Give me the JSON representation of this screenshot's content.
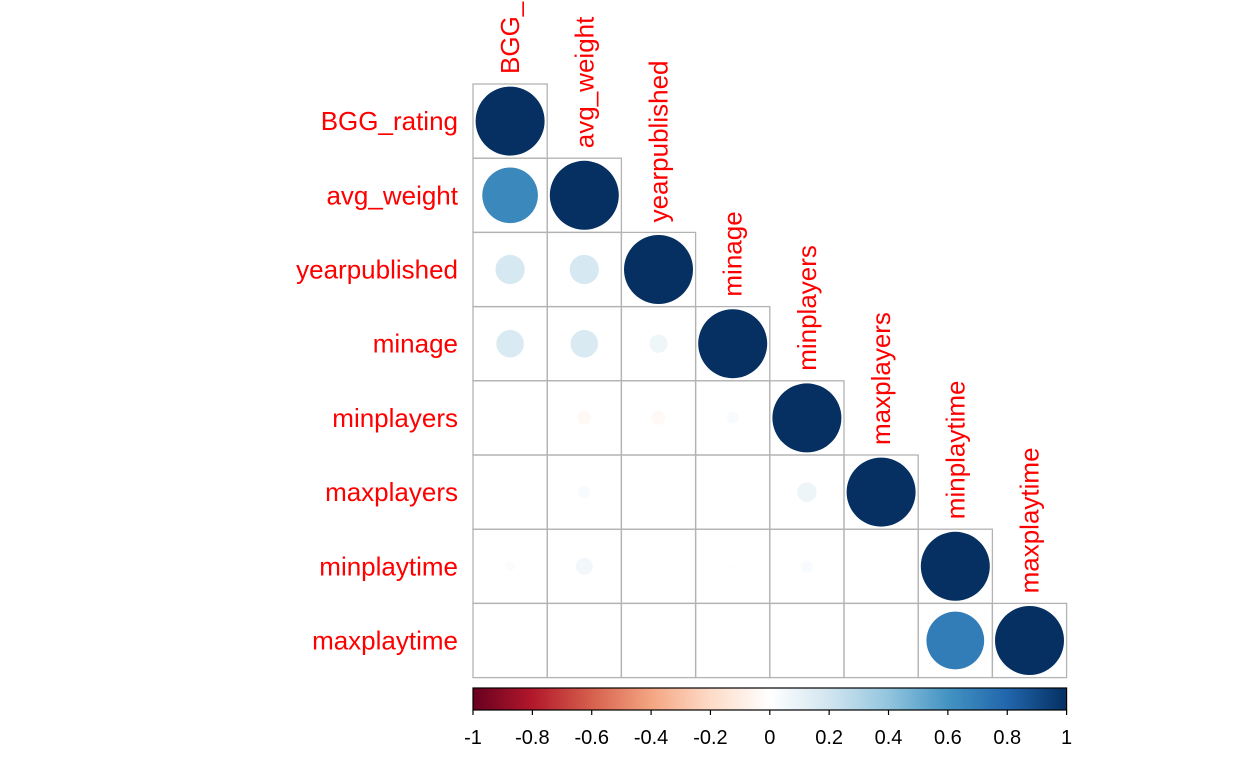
{
  "chart_data": {
    "type": "heatmap",
    "variables": [
      "BGG_rating",
      "avg_weight",
      "yearpublished",
      "minage",
      "minplayers",
      "maxplayers",
      "minplaytime",
      "maxplaytime"
    ],
    "matrix": [
      [
        1.0,
        0.65,
        0.18,
        0.16,
        0.0,
        0.0,
        0.02,
        0.0
      ],
      [
        0.65,
        1.0,
        0.18,
        0.16,
        -0.04,
        0.03,
        0.06,
        0.0
      ],
      [
        0.18,
        0.18,
        1.0,
        0.07,
        -0.04,
        0.0,
        0.0,
        0.0
      ],
      [
        0.16,
        0.16,
        0.07,
        1.0,
        0.03,
        0.0,
        0.01,
        0.0
      ],
      [
        0.0,
        -0.04,
        -0.04,
        0.03,
        1.0,
        0.08,
        0.03,
        0.0
      ],
      [
        0.0,
        0.03,
        0.0,
        0.0,
        0.08,
        1.0,
        0.0,
        0.0
      ],
      [
        0.02,
        0.06,
        0.0,
        0.01,
        0.03,
        0.0,
        1.0,
        0.7
      ],
      [
        0.0,
        0.0,
        0.0,
        0.0,
        0.0,
        0.0,
        0.7,
        1.0
      ]
    ],
    "display": "lower-triangle-circles",
    "color_scale": {
      "range": [
        -1,
        1
      ],
      "ticks": [
        "-1",
        "-0.8",
        "-0.6",
        "-0.4",
        "-0.2",
        "0",
        "0.2",
        "0.4",
        "0.6",
        "0.8",
        "1"
      ],
      "colors": [
        "#67001f",
        "#b2182b",
        "#d6604d",
        "#f4a582",
        "#fddbc7",
        "#ffffff",
        "#d1e5f0",
        "#92c5de",
        "#4393c3",
        "#2166ac",
        "#053061"
      ]
    },
    "legend_placement": "bottom",
    "label_color": "#ff0000"
  }
}
